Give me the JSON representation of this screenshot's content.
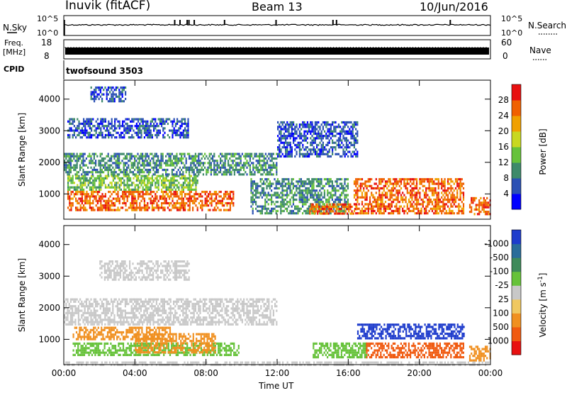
{
  "header": {
    "station": "Inuvik (fitACF)",
    "beam": "Beam 13",
    "date": "10/Jun/2016"
  },
  "top_panels": {
    "nsky": {
      "label": "N.Sky",
      "ticks": [
        "10^5",
        "10^0"
      ]
    },
    "nsearch": {
      "label": "N.Search",
      "ticks": [
        "10^5",
        "10^0"
      ]
    },
    "freq": {
      "label_line1": "Freq.",
      "label_line2": "[MHz]",
      "ticks": [
        "18",
        "8"
      ]
    },
    "nave": {
      "label": "Nave",
      "ticks": [
        "60",
        "0"
      ]
    },
    "cpid": {
      "label": "CPID",
      "value": "twofsound 3503"
    }
  },
  "chart_data": [
    {
      "type": "heatmap",
      "name": "power",
      "ylabel": "Slant Range [km]",
      "xlabel": "Time UT",
      "x_ticks": [
        "00:00",
        "04:00",
        "08:00",
        "12:00",
        "16:00",
        "20:00",
        "00:00"
      ],
      "x_hours": [
        0,
        4,
        8,
        12,
        16,
        20,
        24
      ],
      "y_ticks": [
        1000,
        2000,
        3000,
        4000
      ],
      "ylim": [
        200,
        4600
      ],
      "colorbar": {
        "label": "Power [dB]",
        "ticks": [
          "4",
          "8",
          "12",
          "16",
          "20",
          "24",
          "28"
        ],
        "colors": [
          "#0000ff",
          "#2a50b4",
          "#3e8a6a",
          "#66c23a",
          "#c8d820",
          "#f0a000",
          "#f06000",
          "#e81010"
        ]
      },
      "features": [
        {
          "t": [
            0.2,
            9.5
          ],
          "r": [
            500,
            1100
          ],
          "level": 6
        },
        {
          "t": [
            0.2,
            7.5
          ],
          "r": [
            1100,
            1600
          ],
          "level": 3
        },
        {
          "t": [
            0.0,
            12.0
          ],
          "r": [
            1600,
            2300
          ],
          "level": 2
        },
        {
          "t": [
            0.2,
            7.0
          ],
          "r": [
            2800,
            3400
          ],
          "level": 1
        },
        {
          "t": [
            1.5,
            3.5
          ],
          "r": [
            3900,
            4400
          ],
          "level": 1
        },
        {
          "t": [
            10.5,
            16.0
          ],
          "r": [
            400,
            1500
          ],
          "level": 2
        },
        {
          "t": [
            13.8,
            16.5
          ],
          "r": [
            350,
            700
          ],
          "level": 6
        },
        {
          "t": [
            16.3,
            22.5
          ],
          "r": [
            400,
            1500
          ],
          "level": 6
        },
        {
          "t": [
            22.8,
            24.0
          ],
          "r": [
            350,
            900
          ],
          "level": 6
        },
        {
          "t": [
            12.0,
            16.5
          ],
          "r": [
            2200,
            3300
          ],
          "level": 1
        }
      ]
    },
    {
      "type": "heatmap",
      "name": "velocity",
      "ylabel": "Slant Range [km]",
      "xlabel": "Time UT",
      "x_ticks": [
        "00:00",
        "04:00",
        "08:00",
        "12:00",
        "16:00",
        "20:00",
        "00:00"
      ],
      "x_hours": [
        0,
        4,
        8,
        12,
        16,
        20,
        24
      ],
      "y_ticks": [
        1000,
        2000,
        3000,
        4000
      ],
      "ylim": [
        200,
        4600
      ],
      "colorbar": {
        "label": "Velocity [m s^-1]",
        "ticks": [
          "1000",
          "500",
          "100",
          "25",
          "-25",
          "-100",
          "-500",
          "-1000"
        ],
        "colors": [
          "#1e3ccc",
          "#2a6c9a",
          "#3e8a5a",
          "#66c23a",
          "#c8c8c8",
          "#f0c860",
          "#f09020",
          "#f05a10",
          "#e81010"
        ]
      },
      "features": [
        {
          "t": [
            0.0,
            12.0
          ],
          "r": [
            1500,
            2300
          ],
          "level": 4
        },
        {
          "t": [
            0.5,
            9.8
          ],
          "r": [
            500,
            900
          ],
          "level": 3
        },
        {
          "t": [
            0.5,
            6.0
          ],
          "r": [
            1000,
            1400
          ],
          "level": 6
        },
        {
          "t": [
            4.0,
            8.5
          ],
          "r": [
            600,
            1200
          ],
          "level": 6
        },
        {
          "t": [
            2.0,
            7.0
          ],
          "r": [
            2900,
            3500
          ],
          "level": 4
        },
        {
          "t": [
            14.0,
            17.0
          ],
          "r": [
            400,
            900
          ],
          "level": 3
        },
        {
          "t": [
            16.5,
            22.5
          ],
          "r": [
            1000,
            1500
          ],
          "level": 0
        },
        {
          "t": [
            17.0,
            22.5
          ],
          "r": [
            400,
            900
          ],
          "level": 7
        },
        {
          "t": [
            22.8,
            24.0
          ],
          "r": [
            300,
            800
          ],
          "level": 6
        },
        {
          "t": [
            0.0,
            24.0
          ],
          "r": [
            200,
            300
          ],
          "level": 4
        }
      ]
    }
  ]
}
